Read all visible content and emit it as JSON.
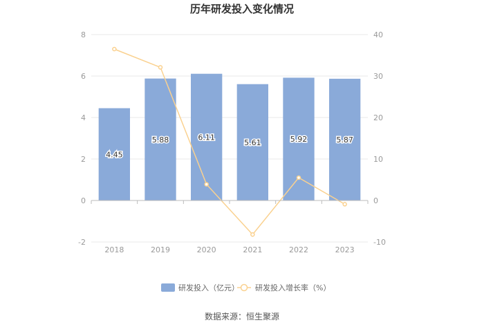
{
  "chart_data": {
    "type": "bar",
    "title": "历年研发投入变化情况",
    "categories": [
      "2018",
      "2019",
      "2020",
      "2021",
      "2022",
      "2023"
    ],
    "series": [
      {
        "name": "研发投入（亿元）",
        "type": "bar",
        "axis": "left",
        "values": [
          4.45,
          5.88,
          6.11,
          5.61,
          5.92,
          5.87
        ],
        "labels": [
          "4.45",
          "5.88",
          "6.11",
          "5.61",
          "5.92",
          "5.87"
        ],
        "color": "#8aaad9"
      },
      {
        "name": "研发投入增长率（%）",
        "type": "line",
        "axis": "right",
        "values": [
          36.5,
          32.1,
          3.9,
          -8.2,
          5.5,
          -0.9
        ],
        "color": "#fad18f"
      }
    ],
    "y_left": {
      "ylim": [
        -2,
        8
      ],
      "ticks": [
        "-2",
        "0",
        "2",
        "4",
        "6",
        "8"
      ]
    },
    "y_right": {
      "ylim": [
        -10,
        40
      ],
      "ticks": [
        "-10",
        "0",
        "10",
        "20",
        "30",
        "40"
      ]
    },
    "grid": true,
    "legend_position": "bottom",
    "source": "数据来源：恒生聚源"
  }
}
